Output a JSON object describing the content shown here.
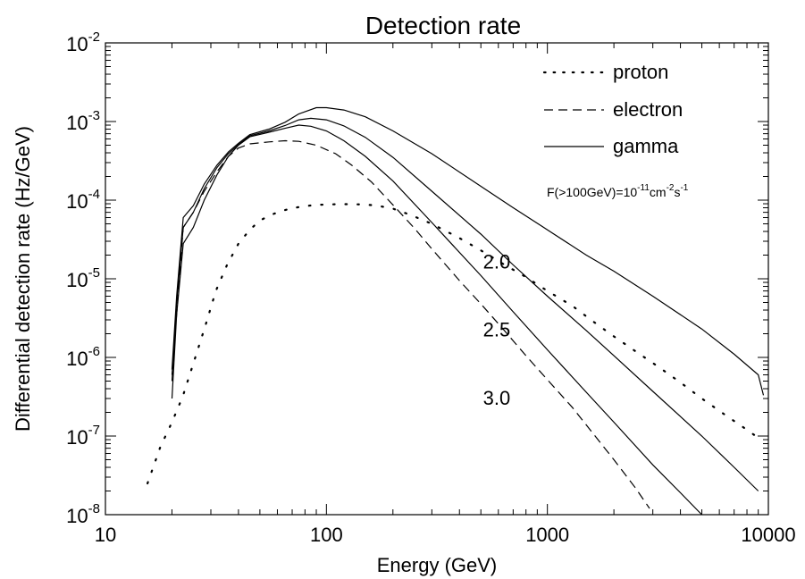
{
  "chart_data": {
    "type": "line",
    "title": "Detection rate",
    "xlabel": "Energy (GeV)",
    "ylabel": "Differential detection rate (Hz/GeV)",
    "x_scale": "log",
    "y_scale": "log",
    "xlim": [
      10,
      10000
    ],
    "ylim": [
      1e-08,
      0.01
    ],
    "grid": false,
    "legend_position": "top-right",
    "x_ticks": [
      {
        "value": 10,
        "label": "10"
      },
      {
        "value": 100,
        "label": "100"
      },
      {
        "value": 1000,
        "label": "1000"
      },
      {
        "value": 10000,
        "label": "10000"
      }
    ],
    "y_ticks": [
      {
        "value": 1e-08,
        "base": "10",
        "exp": "-8"
      },
      {
        "value": 1e-07,
        "base": "10",
        "exp": "-7"
      },
      {
        "value": 1e-06,
        "base": "10",
        "exp": "-6"
      },
      {
        "value": 1e-05,
        "base": "10",
        "exp": "-5"
      },
      {
        "value": 0.0001,
        "base": "10",
        "exp": "-4"
      },
      {
        "value": 0.001,
        "base": "10",
        "exp": "-3"
      },
      {
        "value": 0.01,
        "base": "10",
        "exp": "-2"
      }
    ],
    "legend": [
      {
        "label": "proton",
        "style": "dotted"
      },
      {
        "label": "electron",
        "style": "dashed"
      },
      {
        "label": "gamma",
        "style": "solid"
      }
    ],
    "annotation": {
      "prefix": "F(>100GeV)=10",
      "exp1": "-11",
      "mid": "cm",
      "exp2": "-2",
      "mid2": "s",
      "exp3": "-1"
    },
    "series": [
      {
        "name": "proton",
        "style": "dotted",
        "points": [
          [
            15.5,
            2.5e-08
          ],
          [
            17.7,
            7.2e-08
          ],
          [
            20,
            1.5e-07
          ],
          [
            22.4,
            3.2e-07
          ],
          [
            25.2,
            9e-07
          ],
          [
            28.3,
            2.5e-06
          ],
          [
            31.6,
            7e-06
          ],
          [
            35.5,
            1.5e-05
          ],
          [
            40,
            2.8e-05
          ],
          [
            45,
            4.2e-05
          ],
          [
            50,
            5.5e-05
          ],
          [
            56,
            6.5e-05
          ],
          [
            63,
            7.3e-05
          ],
          [
            70,
            7.9e-05
          ],
          [
            80,
            8.4e-05
          ],
          [
            90,
            8.7e-05
          ],
          [
            100,
            8.8e-05
          ],
          [
            115,
            8.9e-05
          ],
          [
            130,
            8.9e-05
          ],
          [
            150,
            8.8e-05
          ],
          [
            170,
            8.5e-05
          ],
          [
            200,
            7.8e-05
          ],
          [
            240,
            6.5e-05
          ],
          [
            300,
            5e-05
          ],
          [
            400,
            3.3e-05
          ],
          [
            500,
            2.3e-05
          ],
          [
            630,
            1.55e-05
          ],
          [
            800,
            1.05e-05
          ],
          [
            1000,
            7e-06
          ],
          [
            1300,
            4.5e-06
          ],
          [
            1600,
            2.9e-06
          ],
          [
            2000,
            1.85e-06
          ],
          [
            2500,
            1.2e-06
          ],
          [
            3200,
            7.5e-07
          ],
          [
            4000,
            4.8e-07
          ],
          [
            5000,
            3e-07
          ],
          [
            6300,
            1.9e-07
          ],
          [
            8000,
            1.2e-07
          ],
          [
            9000,
            9.5e-08
          ]
        ]
      },
      {
        "name": "electron",
        "style": "dashed",
        "points": [
          [
            20,
            6e-07
          ],
          [
            21,
            3.5e-06
          ],
          [
            22.5,
            4.5e-05
          ],
          [
            25,
            7e-05
          ],
          [
            28,
            0.00013
          ],
          [
            32,
            0.00023
          ],
          [
            36,
            0.00036
          ],
          [
            40,
            0.00046
          ],
          [
            45,
            0.00052
          ],
          [
            55,
            0.00055
          ],
          [
            65,
            0.00057
          ],
          [
            75,
            0.00056
          ],
          [
            90,
            0.0005
          ],
          [
            110,
            0.00039
          ],
          [
            130,
            0.00028
          ],
          [
            160,
            0.00017
          ],
          [
            200,
            8.7e-05
          ],
          [
            250,
            4.4e-05
          ],
          [
            300,
            2.4e-05
          ],
          [
            400,
            9.5e-06
          ],
          [
            500,
            4.8e-06
          ],
          [
            630,
            2.3e-06
          ],
          [
            800,
            1.05e-06
          ],
          [
            1000,
            5.2e-07
          ],
          [
            1300,
            2.3e-07
          ],
          [
            1600,
            1.1e-07
          ],
          [
            2000,
            5e-08
          ],
          [
            2500,
            2.2e-08
          ],
          [
            2900,
            1.2e-08
          ]
        ]
      },
      {
        "name": "2.0",
        "style": "solid",
        "points": [
          [
            20,
            7e-07
          ],
          [
            21,
            6e-06
          ],
          [
            22.5,
            6e-05
          ],
          [
            25,
            8.5e-05
          ],
          [
            28,
            0.00016
          ],
          [
            32,
            0.00028
          ],
          [
            36,
            0.00041
          ],
          [
            40,
            0.00053
          ],
          [
            45,
            0.00068
          ],
          [
            55,
            0.0008
          ],
          [
            65,
            0.00098
          ],
          [
            75,
            0.00125
          ],
          [
            90,
            0.0015
          ],
          [
            100,
            0.0015
          ],
          [
            120,
            0.0014
          ],
          [
            150,
            0.00115
          ],
          [
            200,
            0.00076
          ],
          [
            300,
            0.00039
          ],
          [
            500,
            0.00015
          ],
          [
            700,
            8e-05
          ],
          [
            1000,
            4.2e-05
          ],
          [
            1500,
            2e-05
          ],
          [
            2000,
            1.25e-05
          ],
          [
            3000,
            6e-06
          ],
          [
            5000,
            2.3e-06
          ],
          [
            7000,
            1.1e-06
          ],
          [
            9000,
            6e-07
          ],
          [
            9500,
            3.3e-07
          ]
        ]
      },
      {
        "name": "2.5",
        "style": "solid",
        "points": [
          [
            20,
            5e-07
          ],
          [
            21,
            5e-06
          ],
          [
            22.5,
            4.5e-05
          ],
          [
            25,
            7e-05
          ],
          [
            28,
            0.00014
          ],
          [
            32,
            0.00026
          ],
          [
            36,
            0.00039
          ],
          [
            40,
            0.00051
          ],
          [
            45,
            0.00066
          ],
          [
            55,
            0.00076
          ],
          [
            65,
            0.00089
          ],
          [
            75,
            0.00105
          ],
          [
            85,
            0.0011
          ],
          [
            100,
            0.00105
          ],
          [
            120,
            0.00088
          ],
          [
            150,
            0.00063
          ],
          [
            200,
            0.00035
          ],
          [
            300,
            0.00013
          ],
          [
            500,
            3.7e-05
          ],
          [
            700,
            1.5e-05
          ],
          [
            1000,
            6e-06
          ],
          [
            1500,
            2.2e-06
          ],
          [
            2000,
            1.05e-06
          ],
          [
            3000,
            3.7e-07
          ],
          [
            5000,
            1e-07
          ],
          [
            7000,
            4e-08
          ],
          [
            9000,
            2e-08
          ]
        ]
      },
      {
        "name": "3.0",
        "style": "solid",
        "points": [
          [
            20,
            3e-07
          ],
          [
            21,
            3.5e-06
          ],
          [
            22.5,
            2.8e-05
          ],
          [
            25,
            4.5e-05
          ],
          [
            28,
            0.0001
          ],
          [
            32,
            0.00021
          ],
          [
            36,
            0.00036
          ],
          [
            40,
            0.0005
          ],
          [
            45,
            0.00064
          ],
          [
            55,
            0.00073
          ],
          [
            65,
            0.00082
          ],
          [
            75,
            0.0009
          ],
          [
            85,
            0.00087
          ],
          [
            100,
            0.00076
          ],
          [
            120,
            0.00057
          ],
          [
            150,
            0.00036
          ],
          [
            200,
            0.000175
          ],
          [
            300,
            5.2e-05
          ],
          [
            500,
            1.1e-05
          ],
          [
            700,
            3.8e-06
          ],
          [
            1000,
            1.25e-06
          ],
          [
            1500,
            3.6e-07
          ],
          [
            2000,
            1.5e-07
          ],
          [
            3000,
            4.3e-08
          ],
          [
            4000,
            1.9e-08
          ],
          [
            5000,
            1e-08
          ]
        ]
      }
    ],
    "curve_labels": [
      {
        "text": "2.0",
        "x": 1000,
        "y": 1.35e-05
      },
      {
        "text": "2.5",
        "x": 1000,
        "y": 1.85e-06
      },
      {
        "text": "3.0",
        "x": 1000,
        "y": 2.5e-07
      }
    ]
  }
}
